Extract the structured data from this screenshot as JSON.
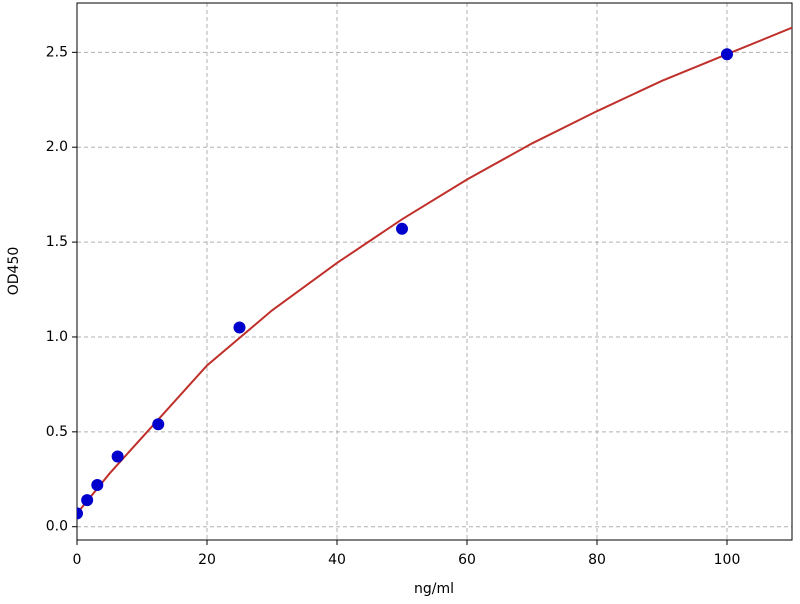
{
  "chart_data": {
    "type": "scatter",
    "x_label": "ng/ml",
    "y_label": "OD450",
    "series": [
      {
        "type": "scatter",
        "color": "#0000cc",
        "x": [
          0,
          1.5625,
          3.125,
          6.25,
          12.5,
          25,
          50,
          100
        ],
        "values": [
          0.07,
          0.14,
          0.22,
          0.37,
          0.54,
          1.05,
          1.57,
          2.49
        ]
      },
      {
        "type": "line",
        "color": "#c0302b",
        "x": [
          0,
          5,
          10,
          20,
          30,
          40,
          50,
          60,
          70,
          80,
          90,
          100,
          110
        ],
        "values": [
          0.07,
          0.28,
          0.47,
          0.85,
          1.14,
          1.39,
          1.62,
          1.83,
          2.02,
          2.19,
          2.35,
          2.49,
          2.63
        ]
      }
    ],
    "xlim": [
      0,
      110
    ],
    "ylim": [
      -0.07,
      2.76
    ],
    "xticks": [
      0,
      20,
      40,
      60,
      80,
      100
    ],
    "yticks": [
      {
        "value": 0,
        "label": "0.0"
      },
      0.5,
      {
        "value": 1,
        "label": "1.0"
      },
      1.5,
      {
        "value": 2,
        "label": "2.0"
      },
      2.5
    ],
    "grid": true
  }
}
